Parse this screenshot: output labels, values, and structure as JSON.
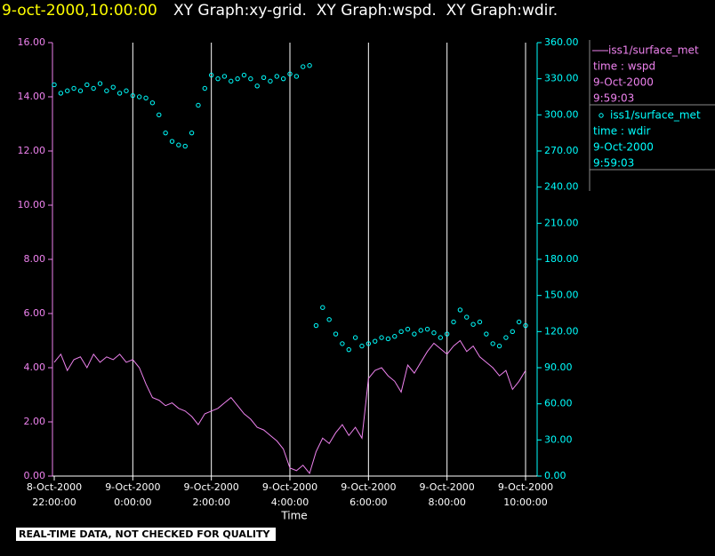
{
  "chart_data": {
    "type": "xy",
    "title": "9-oct-2000,10:00:00",
    "subtitle": "XY Graph:xy-grid.  XY Graph:wspd.  XY Graph:wdir.",
    "x_label": "Time",
    "note": "REAL-TIME DATA, NOT CHECKED FOR QUALITY",
    "grid": true,
    "x": [
      "2000-10-08T22:00",
      "2000-10-08T22:10",
      "2000-10-08T22:20",
      "2000-10-08T22:30",
      "2000-10-08T22:40",
      "2000-10-08T22:50",
      "2000-10-08T23:00",
      "2000-10-08T23:10",
      "2000-10-08T23:20",
      "2000-10-08T23:30",
      "2000-10-08T23:40",
      "2000-10-08T23:50",
      "2000-10-09T00:00",
      "2000-10-09T00:10",
      "2000-10-09T00:20",
      "2000-10-09T00:30",
      "2000-10-09T00:40",
      "2000-10-09T00:50",
      "2000-10-09T01:00",
      "2000-10-09T01:10",
      "2000-10-09T01:20",
      "2000-10-09T01:30",
      "2000-10-09T01:40",
      "2000-10-09T01:50",
      "2000-10-09T02:00",
      "2000-10-09T02:10",
      "2000-10-09T02:20",
      "2000-10-09T02:30",
      "2000-10-09T02:40",
      "2000-10-09T02:50",
      "2000-10-09T03:00",
      "2000-10-09T03:10",
      "2000-10-09T03:20",
      "2000-10-09T03:30",
      "2000-10-09T03:40",
      "2000-10-09T03:50",
      "2000-10-09T04:00",
      "2000-10-09T04:10",
      "2000-10-09T04:20",
      "2000-10-09T04:30",
      "2000-10-09T04:40",
      "2000-10-09T04:50",
      "2000-10-09T05:00",
      "2000-10-09T05:10",
      "2000-10-09T05:20",
      "2000-10-09T05:30",
      "2000-10-09T05:40",
      "2000-10-09T05:50",
      "2000-10-09T06:00",
      "2000-10-09T06:10",
      "2000-10-09T06:20",
      "2000-10-09T06:30",
      "2000-10-09T06:40",
      "2000-10-09T06:50",
      "2000-10-09T07:00",
      "2000-10-09T07:10",
      "2000-10-09T07:20",
      "2000-10-09T07:30",
      "2000-10-09T07:40",
      "2000-10-09T07:50",
      "2000-10-09T08:00",
      "2000-10-09T08:10",
      "2000-10-09T08:20",
      "2000-10-09T08:30",
      "2000-10-09T08:40",
      "2000-10-09T08:50",
      "2000-10-09T09:00",
      "2000-10-09T09:10",
      "2000-10-09T09:20",
      "2000-10-09T09:30",
      "2000-10-09T09:40",
      "2000-10-09T09:50",
      "2000-10-09T10:00"
    ],
    "xlim": [
      "2000-10-08T22:00",
      "2000-10-09T10:00"
    ],
    "xticks": [
      {
        "value": "2000-10-08T22:00",
        "label": [
          "8-Oct-2000",
          "22:00:00"
        ]
      },
      {
        "value": "2000-10-09T00:00",
        "label": [
          "9-Oct-2000",
          "0:00:00"
        ]
      },
      {
        "value": "2000-10-09T02:00",
        "label": [
          "9-Oct-2000",
          "2:00:00"
        ]
      },
      {
        "value": "2000-10-09T04:00",
        "label": [
          "9-Oct-2000",
          "4:00:00"
        ]
      },
      {
        "value": "2000-10-09T06:00",
        "label": [
          "9-Oct-2000",
          "6:00:00"
        ]
      },
      {
        "value": "2000-10-09T08:00",
        "label": [
          "9-Oct-2000",
          "8:00:00"
        ]
      },
      {
        "value": "2000-10-09T10:00",
        "label": [
          "9-Oct-2000",
          "10:00:00"
        ]
      }
    ],
    "ylim": [
      0,
      16
    ],
    "yticks": [
      {
        "value": 0,
        "label": "0.00"
      },
      {
        "value": 2,
        "label": "2.00"
      },
      {
        "value": 4,
        "label": "4.00"
      },
      {
        "value": 6,
        "label": "6.00"
      },
      {
        "value": 8,
        "label": "8.00"
      },
      {
        "value": 10,
        "label": "10.00"
      },
      {
        "value": 12,
        "label": "12.00"
      },
      {
        "value": 14,
        "label": "14.00"
      },
      {
        "value": 16,
        "label": "16.00"
      }
    ],
    "y2lim": [
      0,
      360
    ],
    "y2ticks": [
      {
        "value": 0,
        "label": "0.00"
      },
      {
        "value": 30,
        "label": "30.00"
      },
      {
        "value": 60,
        "label": "60.00"
      },
      {
        "value": 90,
        "label": "90.00"
      },
      {
        "value": 120,
        "label": "120.00"
      },
      {
        "value": 150,
        "label": "150.00"
      },
      {
        "value": 180,
        "label": "180.00"
      },
      {
        "value": 210,
        "label": "210.00"
      },
      {
        "value": 240,
        "label": "240.00"
      },
      {
        "value": 270,
        "label": "270.00"
      },
      {
        "value": 300,
        "label": "300.00"
      },
      {
        "value": 330,
        "label": "330.00"
      },
      {
        "value": 360,
        "label": "360.00"
      }
    ],
    "series": [
      {
        "name": "iss1/surface_met",
        "variable": "time : wspd",
        "date": "9-Oct-2000",
        "time": "9:59:03",
        "color": "#ee82ee",
        "style": "line",
        "values": [
          4.2,
          4.5,
          3.9,
          4.3,
          4.4,
          4.0,
          4.5,
          4.2,
          4.4,
          4.3,
          4.5,
          4.2,
          4.3,
          4.0,
          3.4,
          2.9,
          2.8,
          2.6,
          2.7,
          2.5,
          2.4,
          2.2,
          1.9,
          2.3,
          2.4,
          2.5,
          2.7,
          2.9,
          2.6,
          2.3,
          2.1,
          1.8,
          1.7,
          1.5,
          1.3,
          1.0,
          0.3,
          0.2,
          0.4,
          0.1,
          0.9,
          1.4,
          1.2,
          1.6,
          1.9,
          1.5,
          1.8,
          1.4,
          3.6,
          3.9,
          4.0,
          3.7,
          3.5,
          3.1,
          4.1,
          3.8,
          4.2,
          4.6,
          4.9,
          4.7,
          4.5,
          4.8,
          5.0,
          4.6,
          4.8,
          4.4,
          4.2,
          4.0,
          3.7,
          3.9,
          3.2,
          3.5,
          3.9
        ]
      },
      {
        "name": "iss1/surface_met",
        "variable": "time : wdir",
        "date": "9-Oct-2000",
        "time": "9:59:03",
        "color": "#00ffff",
        "style": "circle",
        "axis": "y2",
        "values": [
          325,
          318,
          320,
          322,
          320,
          325,
          322,
          326,
          320,
          323,
          318,
          320,
          316,
          315,
          314,
          310,
          300,
          285,
          278,
          275,
          274,
          285,
          308,
          322,
          333,
          330,
          332,
          328,
          330,
          333,
          330,
          324,
          331,
          328,
          332,
          330,
          334,
          332,
          340,
          341,
          125,
          140,
          130,
          118,
          110,
          105,
          115,
          108,
          110,
          112,
          115,
          114,
          116,
          120,
          122,
          118,
          121,
          122,
          119,
          115,
          118,
          128,
          138,
          132,
          126,
          128,
          118,
          110,
          108,
          115,
          120,
          128,
          125
        ]
      }
    ]
  }
}
